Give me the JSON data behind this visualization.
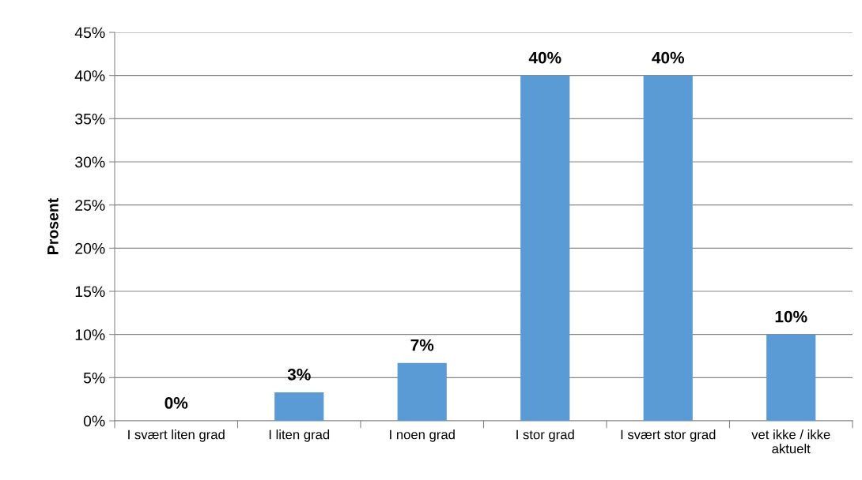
{
  "chart_data": {
    "type": "bar",
    "ylabel": "Prosent",
    "categories": [
      "I svært liten grad",
      "I liten grad",
      "I noen grad",
      "I stor grad",
      "I svært stor grad",
      "vet ikke / ikke\naktuelt"
    ],
    "values": [
      0,
      3.3,
      6.7,
      40,
      40,
      10
    ],
    "value_labels": [
      "0%",
      "3%",
      "7%",
      "40%",
      "40%",
      "10%"
    ],
    "color": "#5b9bd5",
    "ylim": [
      0,
      45
    ],
    "yticks": [
      {
        "value": 0,
        "label": "0%"
      },
      {
        "value": 5,
        "label": "5%"
      },
      {
        "value": 10,
        "label": "10%"
      },
      {
        "value": 15,
        "label": "15%"
      },
      {
        "value": 20,
        "label": "20%"
      },
      {
        "value": 25,
        "label": "25%"
      },
      {
        "value": 30,
        "label": "30%"
      },
      {
        "value": 35,
        "label": "35%"
      },
      {
        "value": 40,
        "label": "40%"
      },
      {
        "value": 45,
        "label": "45%"
      }
    ],
    "grid": "y"
  }
}
